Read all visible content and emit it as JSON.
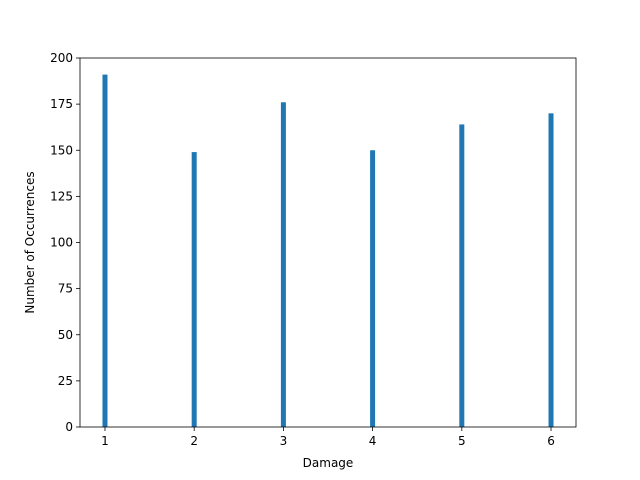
{
  "chart_data": {
    "type": "bar",
    "title": "",
    "xlabel": "Damage",
    "ylabel": "Number of Occurrences",
    "categories": [
      1,
      2,
      3,
      4,
      5,
      6
    ],
    "values": [
      191,
      149,
      176,
      150,
      164,
      170
    ],
    "xlim": [
      0.72,
      6.28
    ],
    "ylim": [
      0,
      200
    ],
    "xticks": [
      1,
      2,
      3,
      4,
      5,
      6
    ],
    "yticks": [
      0,
      25,
      50,
      75,
      100,
      125,
      150,
      175,
      200
    ],
    "bar_color": "#1f77b4",
    "grid": false,
    "legend": "none"
  }
}
